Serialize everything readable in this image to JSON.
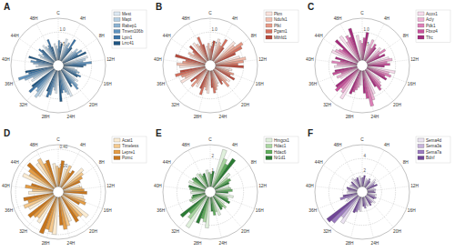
{
  "chart_data": [
    {
      "type": "radial_bar",
      "title": "A",
      "legend": "right",
      "grid": true,
      "categories": [
        "C",
        "4H",
        "8H",
        "12H",
        "16H",
        "20H",
        "24H",
        "28H",
        "32H",
        "36H",
        "40H",
        "44H",
        "48H"
      ],
      "ylim": [
        0,
        1.5
      ],
      "yticks": [
        {
          "value": 0.5,
          "label": "0.5"
        },
        {
          "value": 1,
          "label": "1.0"
        }
      ],
      "series": [
        {
          "name": "Mest",
          "color": "#dde9f3",
          "values": [
            0.6,
            0.8,
            0.5,
            0.9,
            0.4,
            0.7,
            1.0,
            0.8,
            1.1,
            0.9,
            0.6,
            0.5,
            0.7
          ]
        },
        {
          "name": "Mapt",
          "color": "#b5cfe3",
          "values": [
            0.5,
            0.6,
            0.7,
            0.8,
            0.5,
            0.6,
            0.9,
            0.7,
            1.2,
            0.8,
            0.5,
            0.6,
            0.6
          ]
        },
        {
          "name": "Rabep1",
          "color": "#8cb3d3",
          "values": [
            0.4,
            0.7,
            0.6,
            0.7,
            0.6,
            0.8,
            0.8,
            0.6,
            1.0,
            1.1,
            0.7,
            0.4,
            0.5
          ]
        },
        {
          "name": "Tmem106b",
          "color": "#5f93bf",
          "values": [
            0.7,
            0.5,
            0.8,
            1.0,
            0.5,
            0.9,
            0.7,
            0.9,
            0.9,
            1.3,
            0.8,
            0.5,
            0.6
          ]
        },
        {
          "name": "Lpin1",
          "color": "#3a74a8",
          "values": [
            0.5,
            0.9,
            0.6,
            0.8,
            0.7,
            0.6,
            0.8,
            1.0,
            1.2,
            0.9,
            0.6,
            0.7,
            0.8
          ]
        },
        {
          "name": "Lrrc41",
          "color": "#1f5582",
          "values": [
            0.6,
            0.6,
            0.9,
            0.7,
            0.6,
            0.7,
            1.1,
            0.8,
            1.0,
            1.0,
            0.9,
            0.6,
            0.5
          ]
        }
      ]
    },
    {
      "type": "radial_bar",
      "title": "B",
      "legend": "right",
      "grid": true,
      "categories": [
        "C",
        "4H",
        "8H",
        "12H",
        "16H",
        "20H",
        "24H",
        "28H",
        "32H",
        "36H",
        "40H",
        "44H",
        "48H"
      ],
      "ylim": [
        0,
        1.5
      ],
      "yticks": [
        {
          "value": 0.5,
          "label": "0.5"
        },
        {
          "value": 1,
          "label": "1.0"
        }
      ],
      "series": [
        {
          "name": "Pkm",
          "color": "#fbe3dc",
          "values": [
            0.5,
            0.8,
            1.0,
            0.9,
            0.6,
            0.7,
            0.5,
            0.8,
            0.7,
            1.0,
            0.9,
            0.6,
            0.8
          ]
        },
        {
          "name": "Ndufs1",
          "color": "#f4c0b0",
          "values": [
            0.6,
            0.7,
            0.9,
            1.1,
            0.5,
            0.6,
            0.6,
            0.7,
            0.6,
            0.8,
            1.0,
            0.7,
            0.7
          ]
        },
        {
          "name": "Pfkl",
          "color": "#e89a86",
          "values": [
            0.4,
            0.6,
            1.2,
            1.0,
            0.7,
            0.8,
            0.7,
            0.6,
            0.8,
            0.9,
            0.8,
            0.5,
            0.6
          ]
        },
        {
          "name": "Pgam1",
          "color": "#d6705e",
          "values": [
            0.5,
            0.9,
            1.1,
            0.8,
            0.6,
            0.5,
            0.8,
            0.9,
            0.5,
            1.1,
            0.7,
            0.6,
            0.9
          ]
        },
        {
          "name": "Mthfd1",
          "color": "#b84a3c",
          "values": [
            0.7,
            0.6,
            0.8,
            1.0,
            0.8,
            0.6,
            0.6,
            0.7,
            0.7,
            0.9,
            1.1,
            0.8,
            0.6
          ]
        }
      ]
    },
    {
      "type": "radial_bar",
      "title": "C",
      "legend": "right",
      "grid": true,
      "categories": [
        "C",
        "4H",
        "8H",
        "12H",
        "16H",
        "20H",
        "24H",
        "28H",
        "32H",
        "36H",
        "40H",
        "44H",
        "48H"
      ],
      "ylim": [
        0,
        1.5
      ],
      "yticks": [
        {
          "value": 0.5,
          "label": "0.5"
        },
        {
          "value": 1,
          "label": "1.0"
        }
      ],
      "series": [
        {
          "name": "Acox1",
          "color": "#f8dced",
          "values": [
            0.9,
            0.6,
            0.7,
            0.8,
            1.0,
            0.6,
            0.9,
            0.5,
            1.2,
            0.7,
            0.8,
            1.0,
            1.1
          ]
        },
        {
          "name": "Acly",
          "color": "#eeb0d4",
          "values": [
            0.7,
            0.8,
            0.6,
            0.9,
            0.8,
            0.7,
            1.1,
            0.6,
            1.0,
            0.8,
            0.7,
            0.9,
            0.8
          ]
        },
        {
          "name": "Pdk1",
          "color": "#de7fb8",
          "values": [
            0.6,
            0.5,
            0.8,
            0.7,
            0.9,
            0.8,
            1.3,
            0.7,
            0.9,
            0.6,
            0.9,
            0.8,
            1.0
          ]
        },
        {
          "name": "Fbxo4",
          "color": "#c9509b",
          "values": [
            0.8,
            0.7,
            0.5,
            0.8,
            0.7,
            0.9,
            1.0,
            0.8,
            1.1,
            0.9,
            0.6,
            0.7,
            0.9
          ]
        },
        {
          "name": "Tfrc",
          "color": "#a52a7c",
          "values": [
            1.0,
            0.6,
            0.7,
            0.6,
            0.8,
            0.7,
            0.8,
            0.9,
            1.0,
            0.8,
            0.8,
            1.1,
            1.2
          ]
        }
      ]
    },
    {
      "type": "radial_bar",
      "title": "D",
      "legend": "right",
      "grid": true,
      "categories": [
        "C",
        "4H",
        "8H",
        "12H",
        "16H",
        "20H",
        "24H",
        "28H",
        "32H",
        "36H",
        "40H",
        "44H",
        "48H"
      ],
      "ylim": [
        0,
        0.45
      ],
      "yticks": [
        {
          "value": 0.2,
          "label": "0.20"
        },
        {
          "value": 0.4,
          "label": "0.40"
        }
      ],
      "series": [
        {
          "name": "Acat1",
          "color": "#fbecd3",
          "values": [
            0.25,
            0.2,
            0.3,
            0.18,
            0.22,
            0.35,
            0.28,
            0.4,
            0.33,
            0.3,
            0.26,
            0.36,
            0.32
          ]
        },
        {
          "name": "Timeless",
          "color": "#f5c98e",
          "values": [
            0.22,
            0.25,
            0.27,
            0.2,
            0.24,
            0.3,
            0.32,
            0.38,
            0.29,
            0.34,
            0.22,
            0.3,
            0.35
          ]
        },
        {
          "name": "Lepre1",
          "color": "#e59d45",
          "values": [
            0.2,
            0.18,
            0.24,
            0.22,
            0.26,
            0.28,
            0.35,
            0.36,
            0.31,
            0.28,
            0.3,
            0.33,
            0.28
          ]
        },
        {
          "name": "Pomc",
          "color": "#c7751c",
          "values": [
            0.28,
            0.22,
            0.2,
            0.25,
            0.2,
            0.32,
            0.3,
            0.42,
            0.35,
            0.32,
            0.24,
            0.38,
            0.3
          ]
        }
      ]
    },
    {
      "type": "radial_bar",
      "title": "E",
      "legend": "right",
      "grid": true,
      "categories": [
        "C",
        "4H",
        "8H",
        "12H",
        "16H",
        "20H",
        "24H",
        "28H",
        "32H",
        "36H",
        "40H",
        "44H",
        "48H"
      ],
      "ylim": [
        0,
        3
      ],
      "yticks": [
        1,
        2
      ],
      "series": [
        {
          "name": "Hmgcs1",
          "color": "#e0f0dc",
          "values": [
            1.2,
            2.8,
            1.5,
            1.0,
            1.3,
            0.9,
            1.4,
            2.2,
            2.6,
            1.1,
            1.0,
            1.3,
            1.2
          ]
        },
        {
          "name": "Hdac1",
          "color": "#a9d6a0",
          "values": [
            1.0,
            2.2,
            1.2,
            1.1,
            0.9,
            1.2,
            1.1,
            1.8,
            2.0,
            1.2,
            0.9,
            1.0,
            1.1
          ]
        },
        {
          "name": "Hdac6",
          "color": "#5eae5b",
          "values": [
            0.9,
            1.9,
            1.3,
            1.2,
            1.0,
            1.0,
            1.3,
            1.6,
            1.7,
            1.0,
            1.1,
            1.2,
            0.9
          ]
        },
        {
          "name": "Nr1d1",
          "color": "#2b7b34",
          "values": [
            1.1,
            2.5,
            1.1,
            0.9,
            1.2,
            1.1,
            1.0,
            2.0,
            2.3,
            0.9,
            1.2,
            1.1,
            1.0
          ]
        }
      ]
    },
    {
      "type": "radial_bar",
      "title": "F",
      "legend": "right",
      "grid": true,
      "categories": [
        "C",
        "4H",
        "8H",
        "12H",
        "16H",
        "20H",
        "24H",
        "28H",
        "32H",
        "36H",
        "40H",
        "44H",
        "48H"
      ],
      "ylim": [
        0,
        6
      ],
      "yticks": [
        2,
        4
      ],
      "series": [
        {
          "name": "Sema4d",
          "color": "#ebe3f1",
          "values": [
            1.5,
            1.2,
            1.8,
            1.0,
            1.3,
            1.6,
            1.4,
            2.0,
            4.5,
            1.8,
            1.4,
            1.2,
            1.6
          ]
        },
        {
          "name": "Sema3a",
          "color": "#c7b3dc",
          "values": [
            1.2,
            1.0,
            1.5,
            1.2,
            1.1,
            1.3,
            1.2,
            1.8,
            3.8,
            1.5,
            1.2,
            1.1,
            1.3
          ]
        },
        {
          "name": "Sema7a",
          "color": "#9a79bf",
          "values": [
            1.3,
            1.4,
            1.2,
            0.9,
            1.4,
            1.2,
            1.6,
            2.2,
            5.2,
            2.5,
            1.3,
            1.0,
            1.2
          ]
        },
        {
          "name": "Bdnf",
          "color": "#6f4597",
          "values": [
            1.6,
            1.1,
            1.6,
            1.1,
            1.2,
            1.5,
            1.3,
            2.4,
            5.6,
            2.0,
            1.5,
            1.3,
            1.4
          ]
        }
      ]
    }
  ]
}
